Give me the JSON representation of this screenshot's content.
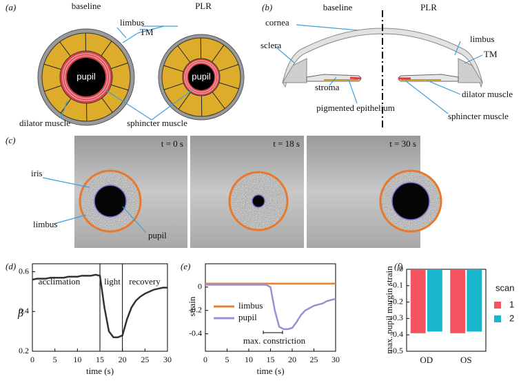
{
  "panel_a": {
    "label": "(a)",
    "baseline": "baseline",
    "plr": "PLR",
    "limbus": "limbus",
    "tm": "TM",
    "pupil_baseline": "pupil",
    "pupil_plr": "pupil",
    "dilator": "dilator muscle",
    "sphincter": "sphincter muscle"
  },
  "panel_b": {
    "label": "(b)",
    "baseline": "baseline",
    "plr": "PLR",
    "cornea": "cornea",
    "sclera": "sclera",
    "limbus": "limbus",
    "tm": "TM",
    "stroma": "stroma",
    "epithelium": "pigmented epithelium",
    "dilator": "dilator muscle",
    "sphincter": "sphincter muscle"
  },
  "panel_c": {
    "label": "(c)",
    "times": [
      "t = 0 s",
      "t = 18 s",
      "t = 30 s"
    ],
    "iris": "iris",
    "limbus": "limbus",
    "pupil": "pupil"
  },
  "chart_data": [
    {
      "type": "line",
      "panel": "(d)",
      "xlabel": "time (s)",
      "ylabel": "β",
      "color": "#333333",
      "x": [
        0,
        1,
        2,
        3,
        4,
        5,
        6,
        7,
        8,
        9,
        10,
        11,
        12,
        13,
        14,
        15,
        16,
        17,
        18,
        19,
        20,
        21,
        22,
        23,
        24,
        25,
        26,
        27,
        28,
        29,
        30
      ],
      "values": [
        0.56,
        0.565,
        0.565,
        0.565,
        0.57,
        0.57,
        0.57,
        0.57,
        0.575,
        0.575,
        0.575,
        0.58,
        0.58,
        0.58,
        0.585,
        0.58,
        0.42,
        0.3,
        0.27,
        0.27,
        0.28,
        0.36,
        0.42,
        0.455,
        0.475,
        0.49,
        0.5,
        0.51,
        0.515,
        0.52,
        0.52
      ],
      "xlim": [
        0,
        30
      ],
      "xticks": [
        0,
        5,
        10,
        15,
        20,
        25,
        30
      ],
      "ylim": [
        0.2,
        0.64
      ],
      "yticks": [
        0.2,
        0.4,
        0.6
      ],
      "xlines": [
        15,
        20
      ],
      "annotations": [
        "acclimation",
        "light",
        "recovery"
      ]
    },
    {
      "type": "line",
      "panel": "(e)",
      "xlabel": "time (s)",
      "ylabel": "strain",
      "x": [
        0,
        1,
        2,
        3,
        4,
        5,
        6,
        7,
        8,
        9,
        10,
        11,
        12,
        13,
        14,
        15,
        16,
        17,
        18,
        19,
        20,
        21,
        22,
        23,
        24,
        25,
        26,
        27,
        28,
        29,
        30
      ],
      "series": [
        {
          "name": "limbus",
          "color": "#e8823a",
          "values": [
            0.03,
            0.03,
            0.03,
            0.03,
            0.03,
            0.03,
            0.03,
            0.03,
            0.03,
            0.03,
            0.03,
            0.03,
            0.03,
            0.03,
            0.03,
            0.03,
            0.03,
            0.03,
            0.03,
            0.03,
            0.03,
            0.03,
            0.03,
            0.03,
            0.03,
            0.03,
            0.03,
            0.03,
            0.03,
            0.03,
            0.03
          ]
        },
        {
          "name": "pupil",
          "color": "#9b8fd0",
          "values": [
            0.02,
            0.02,
            0.02,
            0.02,
            0.02,
            0.02,
            0.02,
            0.02,
            0.02,
            0.02,
            0.02,
            0.02,
            0.02,
            0.02,
            0.02,
            0.0,
            -0.2,
            -0.34,
            -0.36,
            -0.36,
            -0.35,
            -0.3,
            -0.24,
            -0.2,
            -0.18,
            -0.16,
            -0.15,
            -0.14,
            -0.12,
            -0.11,
            -0.1
          ]
        }
      ],
      "xlim": [
        0,
        30
      ],
      "xticks": [
        0,
        5,
        10,
        15,
        20,
        25,
        30
      ],
      "ylim": [
        -0.55,
        0.2
      ],
      "yticks": [
        0,
        -0.2,
        -0.4
      ],
      "annotations": [
        "max. constriction"
      ]
    },
    {
      "type": "bar",
      "panel": "(f)",
      "ylabel": "max. pupil margin strain",
      "categories": [
        "OD",
        "OS"
      ],
      "series": [
        {
          "name": "1",
          "color": "#f4545f",
          "values": [
            -0.39,
            -0.39
          ]
        },
        {
          "name": "2",
          "color": "#17b6cc",
          "values": [
            -0.38,
            -0.38
          ]
        }
      ],
      "legend_title": "scan",
      "ylim": [
        -0.5,
        0
      ],
      "yticks": [
        0,
        -0.1,
        -0.2,
        -0.3,
        -0.4,
        -0.5
      ]
    }
  ]
}
